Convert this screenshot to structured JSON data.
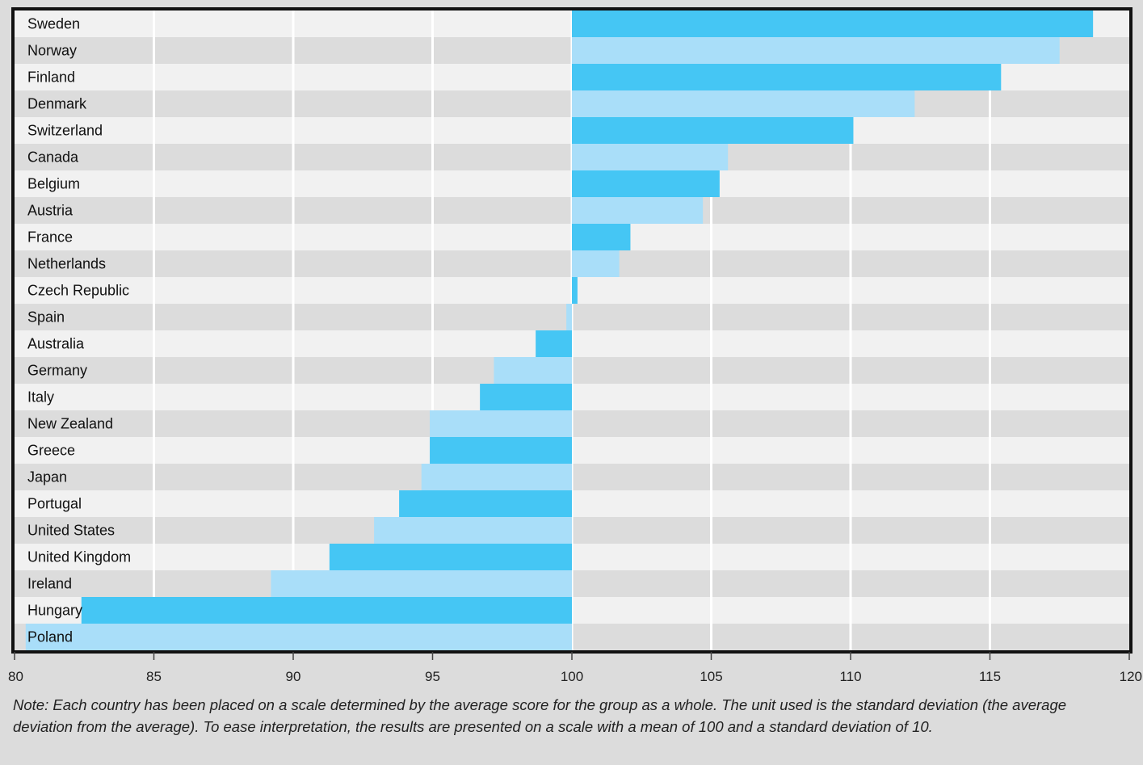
{
  "chart_data": {
    "type": "bar",
    "orientation": "horizontal",
    "baseline": 100,
    "xlim": [
      80,
      120
    ],
    "xticks": [
      80,
      85,
      90,
      95,
      100,
      105,
      110,
      115,
      120
    ],
    "grid": true,
    "colors": {
      "dark": "#45c6f4",
      "light": "#a9def9",
      "row_light": "#f1f1f1",
      "row_dark": "#dcdcdc",
      "frame": "#111111"
    },
    "categories": [
      "Sweden",
      "Norway",
      "Finland",
      "Denmark",
      "Switzerland",
      "Canada",
      "Belgium",
      "Austria",
      "France",
      "Netherlands",
      "Czech Republic",
      "Spain",
      "Australia",
      "Germany",
      "Italy",
      "New Zealand",
      "Greece",
      "Japan",
      "Portugal",
      "United States",
      "United Kingdom",
      "Ireland",
      "Hungary",
      "Poland"
    ],
    "values": [
      118.7,
      117.5,
      115.4,
      112.3,
      110.1,
      105.6,
      105.3,
      104.7,
      102.1,
      101.7,
      100.2,
      99.8,
      98.7,
      97.2,
      96.7,
      94.9,
      94.9,
      94.6,
      93.8,
      92.9,
      91.3,
      89.2,
      82.4,
      80.4
    ]
  },
  "note": "Note: Each country has been placed on a scale determined by the average score for the group as a whole. The unit used is the standard deviation (the average deviation from the average). To ease interpretation, the results are presented on a scale with a mean of 100 and a standard deviation of 10."
}
